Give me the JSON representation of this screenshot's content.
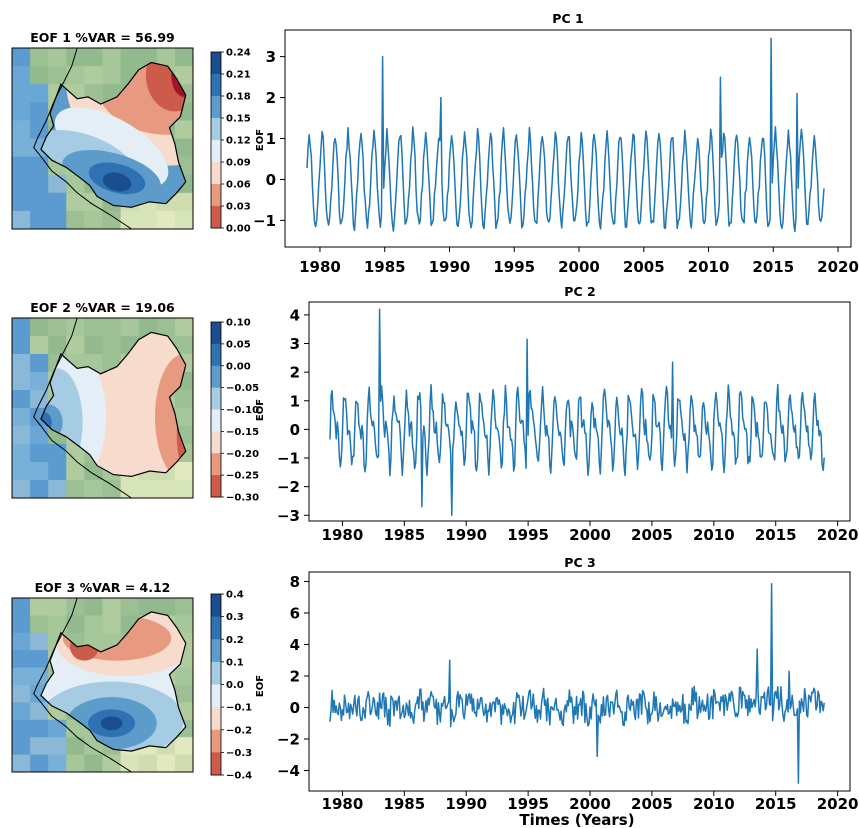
{
  "figure": {
    "xlabel": "Times (Years)"
  },
  "colors": {
    "line": "#1f77b4",
    "land": "#9dc095",
    "sea": "#6fa6d2",
    "frame": "#000000"
  },
  "chart_data": [
    {
      "type": "heatmap",
      "title": "EOF 1  %VAR = 56.99",
      "colorbar_label": "EOF",
      "colorbar_ticks": [
        "0.24",
        "0.21",
        "0.18",
        "0.15",
        "0.12",
        "0.09",
        "0.06",
        "0.03",
        "0.00"
      ],
      "colormap": [
        "#1a4e8f",
        "#2f72b3",
        "#5d9cca",
        "#a6cce3",
        "#e4eef6",
        "#f7dccd",
        "#e89a80",
        "#cd5b4b",
        "#a01527"
      ],
      "pattern": "low-west-high-northeast"
    },
    {
      "type": "line",
      "title": "PC 1",
      "x_range": [
        1979,
        2019
      ],
      "xticks": [
        1980,
        1985,
        1990,
        1995,
        2000,
        2005,
        2010,
        2015,
        2020
      ],
      "xtick_labels": [
        "1980",
        "1985",
        "1990",
        "1995",
        "2000",
        "2005",
        "2010",
        "2015",
        "2020"
      ],
      "yticks": [
        -1,
        0,
        1,
        2,
        3
      ],
      "ytick_labels": [
        "−1",
        "0",
        "1",
        "2",
        "3"
      ],
      "ylim": [
        -1.65,
        3.65
      ],
      "series": [
        {
          "kind": "seasonal",
          "amp": 1.15,
          "mean": 0.0,
          "noise": 0.15,
          "seed": 11,
          "spikes": [
            [
              1984.8,
              3.0
            ],
            [
              1989.3,
              2.0
            ],
            [
              2010.9,
              2.5
            ],
            [
              2014.8,
              3.45
            ],
            [
              2016.8,
              2.1
            ]
          ]
        }
      ]
    },
    {
      "type": "heatmap",
      "title": "EOF 2  %VAR = 19.06",
      "colorbar_label": "EOF",
      "colorbar_ticks": [
        "0.10",
        "0.05",
        "0.00",
        "−0.05",
        "−0.10",
        "−0.15",
        "−0.20",
        "−0.25",
        "−0.30"
      ],
      "colormap": [
        "#1a4e8f",
        "#2f72b3",
        "#5d9cca",
        "#a6cce3",
        "#e4eef6",
        "#f7dccd",
        "#e89a80",
        "#cd5b4b",
        "#a01527"
      ],
      "pattern": "blue-west-red-east"
    },
    {
      "type": "line",
      "title": "PC 2",
      "x_range": [
        1979,
        2019
      ],
      "xticks": [
        1980,
        1985,
        1990,
        1995,
        2000,
        2005,
        2010,
        2015,
        2020
      ],
      "xtick_labels": [
        "1980",
        "1985",
        "1990",
        "1995",
        "2000",
        "2005",
        "2010",
        "2015",
        "2020"
      ],
      "yticks": [
        -3,
        -2,
        -1,
        0,
        1,
        2,
        3,
        4
      ],
      "ytick_labels": [
        "−3",
        "−2",
        "−1",
        "0",
        "1",
        "2",
        "3",
        "4"
      ],
      "ylim": [
        -3.2,
        4.45
      ],
      "series": [
        {
          "kind": "semiannual",
          "amp": 1.2,
          "mean": 0.0,
          "noise": 0.35,
          "seed": 22,
          "spikes": [
            [
              1983.0,
              4.2
            ],
            [
              1988.8,
              -3.0
            ],
            [
              1994.9,
              3.15
            ],
            [
              2006.7,
              2.35
            ],
            [
              1986.4,
              -2.7
            ]
          ]
        }
      ]
    },
    {
      "type": "heatmap",
      "title": "EOF 3  %VAR = 4.12",
      "colorbar_label": "EOF",
      "colorbar_ticks": [
        "0.4",
        "0.3",
        "0.2",
        "0.1",
        "0.0",
        "−0.1",
        "−0.2",
        "−0.3",
        "−0.4"
      ],
      "colormap": [
        "#1a4e8f",
        "#2f72b3",
        "#5d9cca",
        "#a6cce3",
        "#e4eef6",
        "#f7dccd",
        "#e89a80",
        "#cd5b4b",
        "#a01527"
      ],
      "pattern": "red-north-blue-south"
    },
    {
      "type": "line",
      "title": "PC 3",
      "x_range": [
        1979,
        2019
      ],
      "xticks": [
        1980,
        1985,
        1990,
        1995,
        2000,
        2005,
        2010,
        2015,
        2020
      ],
      "xtick_labels": [
        "1980",
        "1985",
        "1990",
        "1995",
        "2000",
        "2005",
        "2010",
        "2015",
        "2020"
      ],
      "yticks": [
        -4,
        -2,
        0,
        2,
        4,
        6,
        8
      ],
      "ytick_labels": [
        "−4",
        "−2",
        "0",
        "2",
        "4",
        "6",
        "8"
      ],
      "ylim": [
        -5.3,
        8.6
      ],
      "series": [
        {
          "kind": "noisy",
          "amp": 0.35,
          "mean": 0.0,
          "noise": 0.9,
          "seed": 33,
          "spikes": [
            [
              1988.7,
              3.0
            ],
            [
              2000.6,
              -3.1
            ],
            [
              2014.7,
              7.85
            ],
            [
              2013.5,
              3.7
            ],
            [
              2016.8,
              -4.8
            ],
            [
              2016.1,
              2.3
            ]
          ]
        }
      ]
    }
  ]
}
